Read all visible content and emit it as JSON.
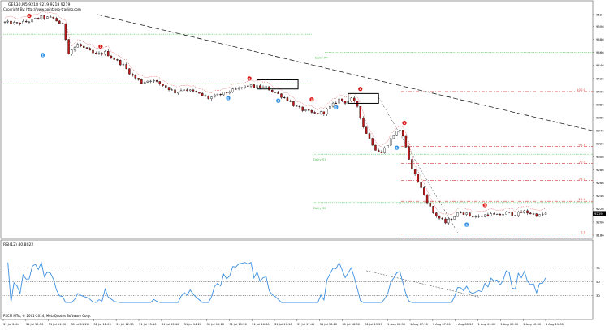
{
  "header": {
    "title": "GER30,M5  9218 9219 9218 9219",
    "copyright": "Copyright By: http://www.pointzero-trading.com"
  },
  "rsi_panel": {
    "label": "RSI(12) 40.8022"
  },
  "footer": {
    "copyright": "PXCM MTA, © 2001-2014, MetaQuotes Software Corp."
  },
  "colors": {
    "bull": "#ffffff",
    "bear": "#c01818",
    "outline": "#000000",
    "rsi_line": "#3d8fe0",
    "fib_line": "#d83a3a",
    "daily_level": "#46c34a",
    "trend_line": "#222222"
  },
  "chart_data": [
    {
      "type": "candlestick",
      "title": "GER30,M5  9218 9219 9218 9219",
      "ylim": [
        9186,
        9524
      ],
      "y_ticks": [
        9186,
        9206,
        9226,
        9246,
        9266,
        9286,
        9306,
        9326,
        9346,
        9366,
        9386,
        9406,
        9426,
        9446,
        9466,
        9486,
        9506,
        9524
      ],
      "last_price": "9219",
      "x_tick_labels": [
        "31 Jul 2014",
        "31 Jul 10:30",
        "31 Jul 11:00",
        "31 Jul 11:20",
        "31 Jul 12:00",
        "31 Jul 12:30",
        "31 Jul 13:10",
        "31 Jul 13:40",
        "31 Jul 14:20",
        "31 Jul 15:10",
        "31 Jul 15:50",
        "31 Jul 16:30",
        "31 Jul 17:10",
        "31 Jul 17:40",
        "31 Jul 18:20",
        "31 Jul 18:50",
        "31 Jul 19:20",
        "1 Aug 06:30",
        "1 Aug 07:10",
        "1 Aug 07:50",
        "1 Aug 08:30",
        "1 Aug 09:00",
        "1 Aug 09:50",
        "1 Aug 10:30",
        "1 Aug 11:00"
      ],
      "price_path": [
        [
          0,
          9512
        ],
        [
          8,
          9510
        ],
        [
          16,
          9514
        ],
        [
          24,
          9520
        ],
        [
          32,
          9518
        ],
        [
          38,
          9508
        ],
        [
          42,
          9466
        ],
        [
          48,
          9478
        ],
        [
          54,
          9470
        ],
        [
          60,
          9462
        ],
        [
          66,
          9466
        ],
        [
          72,
          9456
        ],
        [
          78,
          9446
        ],
        [
          84,
          9430
        ],
        [
          90,
          9420
        ],
        [
          96,
          9424
        ],
        [
          104,
          9416
        ],
        [
          112,
          9405
        ],
        [
          118,
          9410
        ],
        [
          126,
          9404
        ],
        [
          134,
          9396
        ],
        [
          140,
          9400
        ],
        [
          148,
          9406
        ],
        [
          156,
          9412
        ],
        [
          160,
          9415
        ],
        [
          166,
          9413
        ],
        [
          172,
          9412
        ],
        [
          180,
          9402
        ],
        [
          186,
          9394
        ],
        [
          192,
          9382
        ],
        [
          198,
          9376
        ],
        [
          204,
          9372
        ],
        [
          210,
          9374
        ],
        [
          216,
          9386
        ],
        [
          220,
          9394
        ],
        [
          224,
          9390
        ],
        [
          228,
          9394
        ],
        [
          232,
          9384
        ],
        [
          236,
          9352
        ],
        [
          240,
          9334
        ],
        [
          244,
          9318
        ],
        [
          248,
          9312
        ],
        [
          252,
          9326
        ],
        [
          256,
          9340
        ],
        [
          260,
          9348
        ],
        [
          262,
          9338
        ],
        [
          266,
          9300
        ],
        [
          270,
          9278
        ],
        [
          274,
          9258
        ],
        [
          278,
          9238
        ],
        [
          282,
          9220
        ],
        [
          286,
          9212
        ],
        [
          290,
          9205
        ],
        [
          294,
          9212
        ],
        [
          300,
          9222
        ],
        [
          306,
          9216
        ],
        [
          312,
          9214
        ],
        [
          318,
          9218
        ],
        [
          324,
          9216
        ],
        [
          330,
          9220
        ],
        [
          336,
          9218
        ],
        [
          342,
          9222
        ],
        [
          348,
          9218
        ],
        [
          352,
          9216
        ],
        [
          356,
          9219
        ]
      ],
      "fib_levels": [
        {
          "label": "100.0",
          "value": 9406
        },
        {
          "label": "61.8",
          "value": 9322
        },
        {
          "label": "50.0",
          "value": 9296
        },
        {
          "label": "38.2",
          "value": 9270
        },
        {
          "label": "23.6",
          "value": 9238
        },
        {
          "label": "0.0",
          "value": 9188
        }
      ],
      "daily_levels": [
        {
          "label": "Daily PP",
          "value": 9466
        },
        {
          "label": "Daily S1",
          "value": 9310
        },
        {
          "label": "Daily S2",
          "value": 9236
        }
      ],
      "arrow_markers": [
        {
          "kind": "sell",
          "label": "1",
          "bar": 16,
          "value": 9522
        },
        {
          "kind": "buy",
          "label": "1",
          "bar": 25,
          "value": 9462
        },
        {
          "kind": "sell",
          "label": "1",
          "bar": 63,
          "value": 9475
        },
        {
          "kind": "buy",
          "label": "1",
          "bar": 147,
          "value": 9396
        },
        {
          "kind": "sell",
          "label": "1",
          "bar": 161,
          "value": 9426
        },
        {
          "kind": "buy",
          "label": "1",
          "bar": 180,
          "value": 9392
        },
        {
          "kind": "sell",
          "label": "1",
          "bar": 202,
          "value": 9394
        },
        {
          "kind": "buy",
          "label": "1",
          "bar": 218,
          "value": 9382
        },
        {
          "kind": "sell",
          "label": "1",
          "bar": 234,
          "value": 9410
        },
        {
          "kind": "buy",
          "label": "1",
          "bar": 258,
          "value": 9320
        },
        {
          "kind": "sell",
          "label": "1",
          "bar": 263,
          "value": 9358
        },
        {
          "kind": "sell",
          "label": "1",
          "bar": 316,
          "value": 9232
        },
        {
          "kind": "buy",
          "label": "1",
          "bar": 304,
          "value": 9202
        }
      ],
      "box_annotations": [
        {
          "bar_from": 166,
          "bar_to": 193,
          "low": 9410,
          "high": 9424
        },
        {
          "bar_from": 226,
          "bar_to": 246,
          "low": 9388,
          "high": 9403
        }
      ]
    },
    {
      "type": "line",
      "title": "RSI(12) 40.8022",
      "ylim": [
        0,
        100
      ],
      "y_ticks": [
        30,
        50,
        70
      ],
      "levels": [
        30,
        50,
        70
      ]
    }
  ]
}
